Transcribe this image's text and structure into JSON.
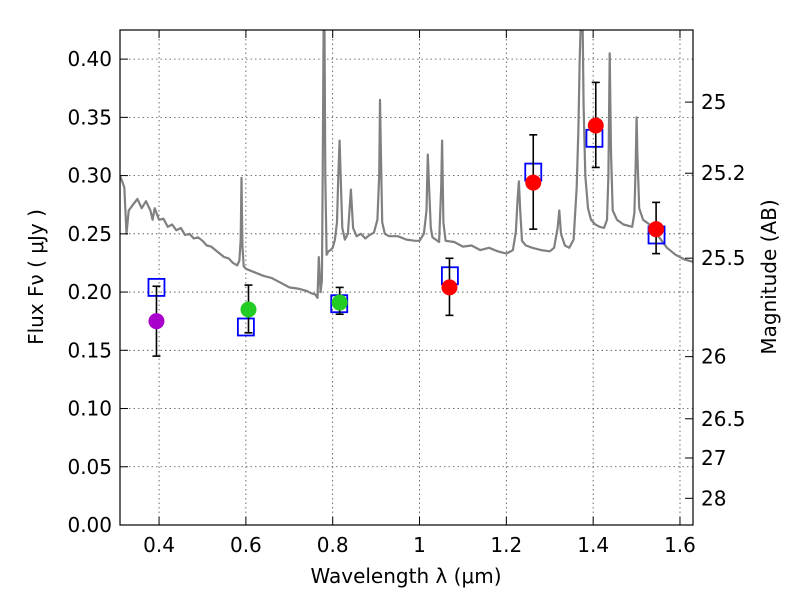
{
  "chart_data": {
    "type": "scatter",
    "xlabel": "Wavelength  λ (μm)",
    "ylabel": "Flux  Fν  ( μJy )",
    "ylabel_right": "Magnitude (AB)",
    "xlim": [
      0.31,
      1.63
    ],
    "ylim": [
      0.0,
      0.425
    ],
    "x_ticks": [
      {
        "value": 0.4,
        "label": "0.4"
      },
      {
        "value": 0.6,
        "label": "0.6"
      },
      {
        "value": 0.8,
        "label": "0.8"
      },
      {
        "value": 1.0,
        "label": "1"
      },
      {
        "value": 1.2,
        "label": "1.2"
      },
      {
        "value": 1.4,
        "label": "1.4"
      },
      {
        "value": 1.6,
        "label": "1.6"
      }
    ],
    "y_ticks": [
      {
        "value": 0.0,
        "label": "0.00"
      },
      {
        "value": 0.05,
        "label": "0.05"
      },
      {
        "value": 0.1,
        "label": "0.10"
      },
      {
        "value": 0.15,
        "label": "0.15"
      },
      {
        "value": 0.2,
        "label": "0.20"
      },
      {
        "value": 0.25,
        "label": "0.25"
      },
      {
        "value": 0.3,
        "label": "0.30"
      },
      {
        "value": 0.35,
        "label": "0.35"
      },
      {
        "value": 0.4,
        "label": "0.40"
      }
    ],
    "mag_ticks": [
      {
        "mag": 25,
        "label": "25"
      },
      {
        "mag": 25.2,
        "label": "25.2"
      },
      {
        "mag": 25.5,
        "label": "25.5"
      },
      {
        "mag": 26,
        "label": "26"
      },
      {
        "mag": 26.5,
        "label": "26.5"
      },
      {
        "mag": 27,
        "label": "27"
      },
      {
        "mag": 28,
        "label": "28"
      }
    ],
    "grid": true,
    "colors": {
      "spectrum": "#808080",
      "model": "#0000ff",
      "purple": "#aa00cc",
      "green": "#22cc22",
      "red": "#ff0000",
      "errorbar": "#000000"
    },
    "observed": [
      {
        "x": 0.394,
        "y": 0.175,
        "err_low": 0.145,
        "err_high": 0.205,
        "color": "purple"
      },
      {
        "x": 0.606,
        "y": 0.185,
        "err_low": 0.165,
        "err_high": 0.206,
        "color": "green"
      },
      {
        "x": 0.816,
        "y": 0.191,
        "err_low": 0.181,
        "err_high": 0.204,
        "color": "green"
      },
      {
        "x": 1.069,
        "y": 0.204,
        "err_low": 0.18,
        "err_high": 0.229,
        "color": "red"
      },
      {
        "x": 1.262,
        "y": 0.294,
        "err_low": 0.254,
        "err_high": 0.335,
        "color": "red"
      },
      {
        "x": 1.406,
        "y": 0.343,
        "err_low": 0.307,
        "err_high": 0.38,
        "color": "red"
      },
      {
        "x": 1.545,
        "y": 0.254,
        "err_low": 0.233,
        "err_high": 0.277,
        "color": "red"
      }
    ],
    "model_photometry": [
      {
        "x": 0.394,
        "y": 0.204
      },
      {
        "x": 0.6,
        "y": 0.17
      },
      {
        "x": 0.815,
        "y": 0.19
      },
      {
        "x": 1.07,
        "y": 0.214
      },
      {
        "x": 1.262,
        "y": 0.303
      },
      {
        "x": 1.403,
        "y": 0.332
      },
      {
        "x": 1.546,
        "y": 0.249
      }
    ],
    "spectrum": [
      [
        0.31,
        0.3
      ],
      [
        0.32,
        0.29
      ],
      [
        0.325,
        0.25
      ],
      [
        0.33,
        0.27
      ],
      [
        0.34,
        0.275
      ],
      [
        0.35,
        0.28
      ],
      [
        0.36,
        0.272
      ],
      [
        0.37,
        0.278
      ],
      [
        0.38,
        0.27
      ],
      [
        0.385,
        0.262
      ],
      [
        0.39,
        0.272
      ],
      [
        0.4,
        0.262
      ],
      [
        0.41,
        0.263
      ],
      [
        0.42,
        0.256
      ],
      [
        0.43,
        0.258
      ],
      [
        0.44,
        0.253
      ],
      [
        0.45,
        0.255
      ],
      [
        0.46,
        0.249
      ],
      [
        0.47,
        0.25
      ],
      [
        0.48,
        0.246
      ],
      [
        0.49,
        0.247
      ],
      [
        0.5,
        0.244
      ],
      [
        0.51,
        0.24
      ],
      [
        0.52,
        0.239
      ],
      [
        0.53,
        0.236
      ],
      [
        0.54,
        0.233
      ],
      [
        0.55,
        0.23
      ],
      [
        0.56,
        0.229
      ],
      [
        0.57,
        0.225
      ],
      [
        0.58,
        0.223
      ],
      [
        0.585,
        0.227
      ],
      [
        0.588,
        0.245
      ],
      [
        0.59,
        0.298
      ],
      [
        0.592,
        0.24
      ],
      [
        0.595,
        0.222
      ],
      [
        0.6,
        0.22
      ],
      [
        0.62,
        0.217
      ],
      [
        0.64,
        0.214
      ],
      [
        0.66,
        0.212
      ],
      [
        0.68,
        0.208
      ],
      [
        0.7,
        0.204
      ],
      [
        0.72,
        0.203
      ],
      [
        0.74,
        0.201
      ],
      [
        0.75,
        0.199
      ],
      [
        0.76,
        0.198
      ],
      [
        0.765,
        0.195
      ],
      [
        0.768,
        0.23
      ],
      [
        0.772,
        0.2
      ],
      [
        0.775,
        0.21
      ],
      [
        0.777,
        0.3
      ],
      [
        0.779,
        0.425
      ],
      [
        0.781,
        0.425
      ],
      [
        0.783,
        0.3
      ],
      [
        0.786,
        0.232
      ],
      [
        0.79,
        0.235
      ],
      [
        0.795,
        0.236
      ],
      [
        0.8,
        0.238
      ],
      [
        0.805,
        0.245
      ],
      [
        0.81,
        0.26
      ],
      [
        0.813,
        0.3
      ],
      [
        0.816,
        0.33
      ],
      [
        0.819,
        0.29
      ],
      [
        0.822,
        0.255
      ],
      [
        0.828,
        0.245
      ],
      [
        0.835,
        0.25
      ],
      [
        0.842,
        0.288
      ],
      [
        0.847,
        0.255
      ],
      [
        0.855,
        0.248
      ],
      [
        0.865,
        0.25
      ],
      [
        0.875,
        0.246
      ],
      [
        0.885,
        0.249
      ],
      [
        0.895,
        0.251
      ],
      [
        0.903,
        0.262
      ],
      [
        0.907,
        0.3
      ],
      [
        0.909,
        0.365
      ],
      [
        0.911,
        0.32
      ],
      [
        0.914,
        0.26
      ],
      [
        0.92,
        0.25
      ],
      [
        0.93,
        0.248
      ],
      [
        0.95,
        0.248
      ],
      [
        0.97,
        0.245
      ],
      [
        0.99,
        0.244
      ],
      [
        1.0,
        0.244
      ],
      [
        1.01,
        0.25
      ],
      [
        1.016,
        0.27
      ],
      [
        1.019,
        0.318
      ],
      [
        1.022,
        0.29
      ],
      [
        1.026,
        0.255
      ],
      [
        1.03,
        0.247
      ],
      [
        1.045,
        0.243
      ],
      [
        1.05,
        0.29
      ],
      [
        1.052,
        0.33
      ],
      [
        1.055,
        0.26
      ],
      [
        1.06,
        0.244
      ],
      [
        1.08,
        0.243
      ],
      [
        1.1,
        0.239
      ],
      [
        1.12,
        0.24
      ],
      [
        1.14,
        0.236
      ],
      [
        1.16,
        0.238
      ],
      [
        1.18,
        0.235
      ],
      [
        1.2,
        0.233
      ],
      [
        1.215,
        0.236
      ],
      [
        1.222,
        0.252
      ],
      [
        1.226,
        0.28
      ],
      [
        1.229,
        0.295
      ],
      [
        1.232,
        0.27
      ],
      [
        1.236,
        0.244
      ],
      [
        1.245,
        0.24
      ],
      [
        1.26,
        0.238
      ],
      [
        1.28,
        0.236
      ],
      [
        1.3,
        0.235
      ],
      [
        1.31,
        0.238
      ],
      [
        1.318,
        0.255
      ],
      [
        1.322,
        0.27
      ],
      [
        1.326,
        0.25
      ],
      [
        1.335,
        0.24
      ],
      [
        1.345,
        0.238
      ],
      [
        1.355,
        0.245
      ],
      [
        1.362,
        0.29
      ],
      [
        1.366,
        0.34
      ],
      [
        1.369,
        0.4
      ],
      [
        1.371,
        0.425
      ],
      [
        1.376,
        0.425
      ],
      [
        1.378,
        0.36
      ],
      [
        1.382,
        0.3
      ],
      [
        1.388,
        0.272
      ],
      [
        1.395,
        0.262
      ],
      [
        1.405,
        0.258
      ],
      [
        1.415,
        0.256
      ],
      [
        1.425,
        0.255
      ],
      [
        1.432,
        0.262
      ],
      [
        1.435,
        0.3
      ],
      [
        1.438,
        0.405
      ],
      [
        1.441,
        0.32
      ],
      [
        1.445,
        0.27
      ],
      [
        1.455,
        0.262
      ],
      [
        1.47,
        0.258
      ],
      [
        1.49,
        0.256
      ],
      [
        1.495,
        0.268
      ],
      [
        1.498,
        0.31
      ],
      [
        1.5,
        0.35
      ],
      [
        1.502,
        0.318
      ],
      [
        1.506,
        0.272
      ],
      [
        1.515,
        0.262
      ],
      [
        1.53,
        0.258
      ],
      [
        1.55,
        0.248
      ],
      [
        1.57,
        0.238
      ],
      [
        1.59,
        0.232
      ],
      [
        1.61,
        0.228
      ],
      [
        1.63,
        0.226
      ]
    ]
  }
}
